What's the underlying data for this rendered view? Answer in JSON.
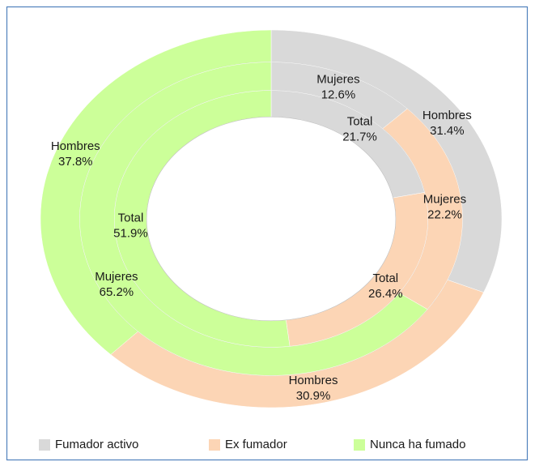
{
  "chart_data": {
    "type": "doughnut",
    "categories": [
      "Fumador activo",
      "Ex fumador",
      "Nunca ha fumado"
    ],
    "colors": [
      "#d9d9d9",
      "#fcd5b5",
      "#ccff99"
    ],
    "series": [
      {
        "name": "Hombres",
        "values": [
          31.4,
          30.9,
          37.8
        ],
        "value_labels": [
          "31.4%",
          "30.9%",
          "37.8%"
        ]
      },
      {
        "name": "Mujeres",
        "values": [
          12.6,
          22.2,
          65.2
        ],
        "value_labels": [
          "12.6%",
          "22.2%",
          "65.2%"
        ]
      },
      {
        "name": "Total",
        "values": [
          21.7,
          26.4,
          51.9
        ],
        "value_labels": [
          "21.7%",
          "26.4%",
          "51.9%"
        ]
      }
    ],
    "legend": "bottom"
  }
}
